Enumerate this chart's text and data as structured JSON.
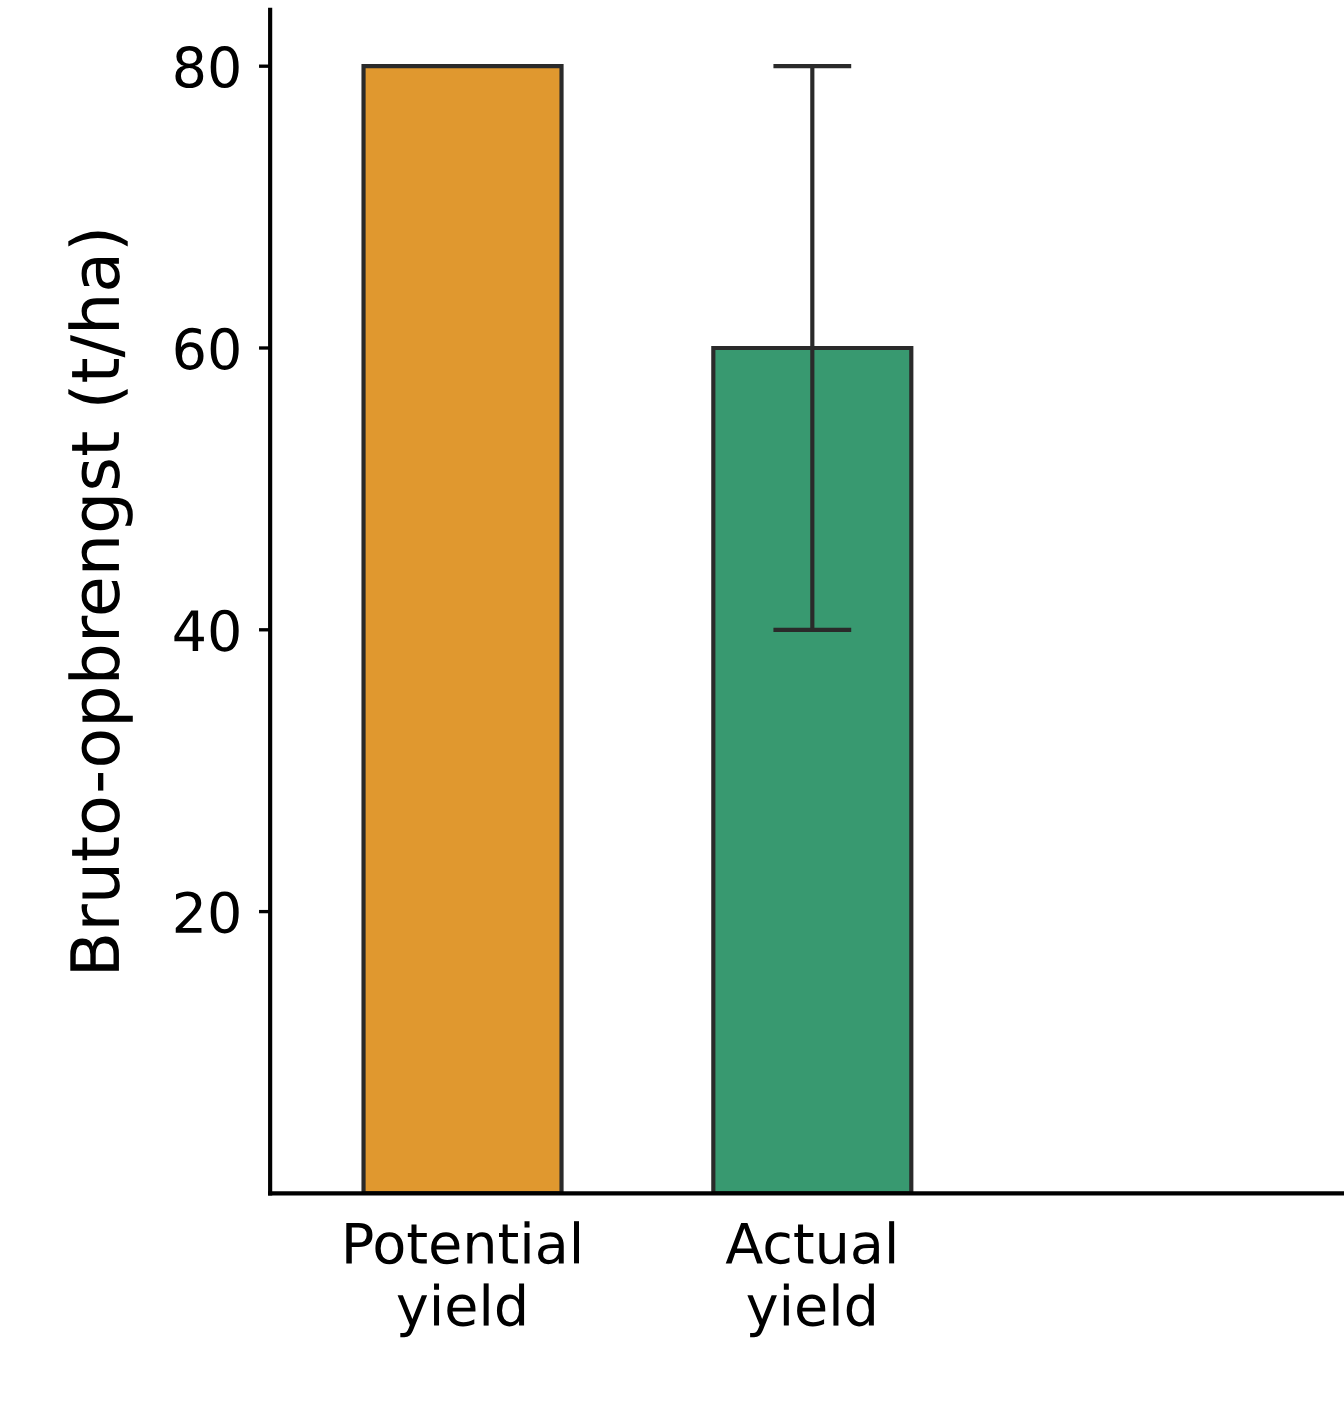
{
  "chart_data": {
    "type": "bar",
    "ylabel": "Bruto-opbrengst (t/ha)",
    "categories": [
      "Potential\nyield",
      "Actual\nyield"
    ],
    "values": [
      80,
      60
    ],
    "colors": [
      "#e0982f",
      "#389970"
    ],
    "errors": [
      null,
      [
        40,
        80
      ]
    ],
    "ylim": [
      0,
      84
    ],
    "yticks": [
      20,
      40,
      60,
      80
    ],
    "grid": false,
    "legend": false
  }
}
